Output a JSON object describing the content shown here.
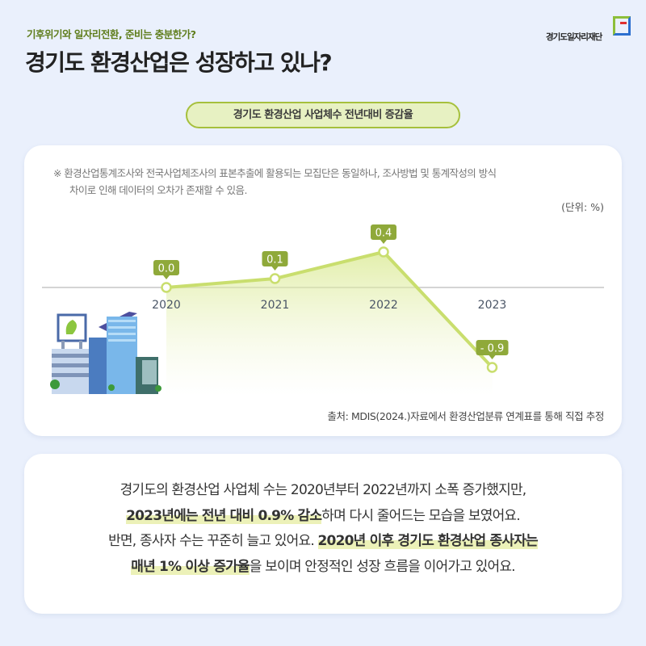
{
  "header": {
    "subtitle": "기후위기와 일자리전환, 준비는 충분한가?",
    "title": "경기도 환경산업은 성장하고 있나?",
    "logo_text": "경기도일자리재단"
  },
  "chart_data": {
    "type": "line",
    "title": "경기도 환경산업 사업체수 전년대비 증감율",
    "note_line1": "※ 환경산업통계조사와 전국사업체조사의 표본추출에 활용되는 모집단은 동일하나, 조사방법 및 통계작성의 방식",
    "note_line2": "차이로 인해 데이터의 오차가 존재할 수 있음.",
    "unit": "(단위: %)",
    "categories": [
      "2020",
      "2021",
      "2022",
      "2023"
    ],
    "values": [
      0.0,
      0.1,
      0.4,
      -0.9
    ],
    "value_labels": [
      "0.0",
      "0.1",
      "0.4",
      "- 0.9"
    ],
    "source": "출처: MDIS(2024.)자료에서 환경산업분류 연계표를 통해 직접 추정",
    "colors": {
      "line": "#c9de6e",
      "label_bg": "#8fa93a",
      "baseline": "#d4d4d4"
    }
  },
  "summary": {
    "l1": "경기도의 환경산업 사업체 수는 2020년부터 2022년까지 소폭 증가했지만,",
    "l2_hl": "2023년에는 전년 대비 0.9% 감소",
    "l2": "하며 다시 줄어드는 모습을 보였어요.",
    "l3": "반면, 종사자 수는 꾸준히 늘고 있어요. ",
    "l3_hl": "2020년 이후 경기도 환경산업 종사자는",
    "l4_hl": "매년 1% 이상 증가율",
    "l4": "을 보이며 안정적인 성장 흐름을 이어가고 있어요."
  }
}
